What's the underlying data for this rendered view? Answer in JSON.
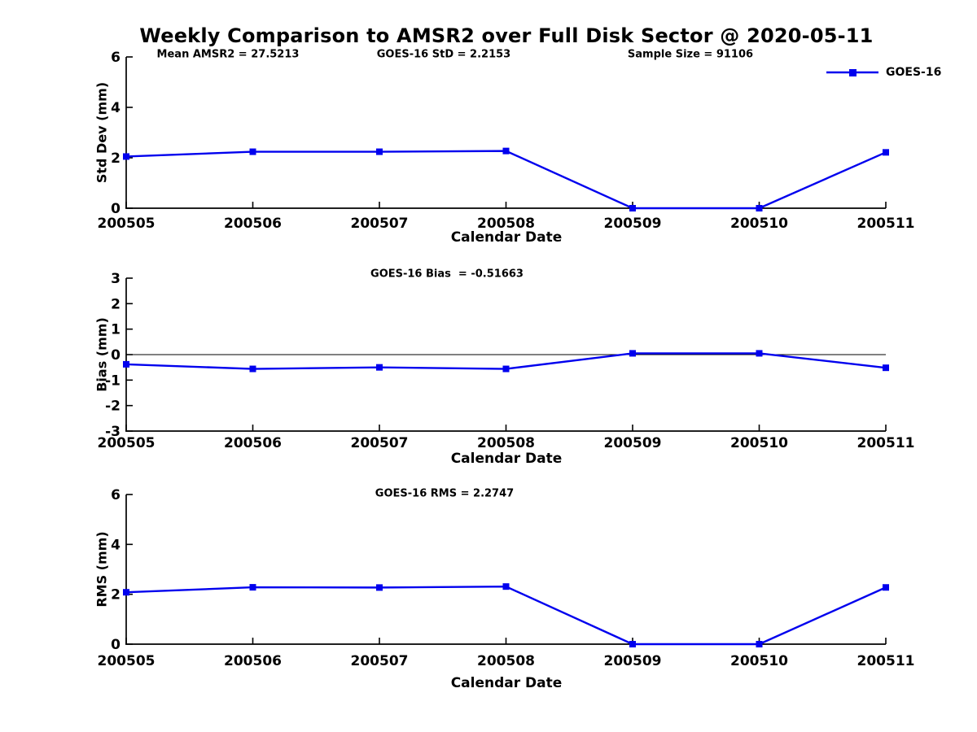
{
  "figure": {
    "title": "Weekly Comparison to AMSR2 over Full Disk Sector @ 2020-05-11",
    "background_color": "#ffffff",
    "line_color": "#0000ee",
    "axis_color": "#000000"
  },
  "legend": {
    "label": "GOES-16",
    "marker": "filled-square",
    "position": "top-right"
  },
  "chart_data": [
    {
      "type": "line",
      "ylabel": "Std Dev (mm)",
      "xlabel": "Calendar Date",
      "ylim": [
        0,
        6
      ],
      "yticks": [
        0,
        2,
        4,
        6
      ],
      "categories": [
        "200505",
        "200506",
        "200507",
        "200508",
        "200509",
        "200510",
        "200511"
      ],
      "series": [
        {
          "name": "GOES-16",
          "values": [
            2.05,
            2.24,
            2.24,
            2.27,
            0,
            0,
            2.2153
          ]
        }
      ],
      "annotations": [
        "Mean AMSR2 = 27.5213",
        "GOES-16 StD = 2.2153",
        "Sample Size = 91106"
      ],
      "grid": false,
      "zero_line": false,
      "legend_visible": true
    },
    {
      "type": "line",
      "ylabel": "Bias (mm)",
      "xlabel": "Calendar Date",
      "ylim": [
        -3,
        3
      ],
      "yticks": [
        -3,
        -2,
        -1,
        0,
        1,
        2,
        3
      ],
      "categories": [
        "200505",
        "200506",
        "200507",
        "200508",
        "200509",
        "200510",
        "200511"
      ],
      "series": [
        {
          "name": "GOES-16",
          "values": [
            -0.38,
            -0.56,
            -0.5,
            -0.56,
            0.05,
            0.05,
            -0.51663
          ]
        }
      ],
      "annotations": [
        "GOES-16 Bias  = -0.51663"
      ],
      "grid": false,
      "zero_line": true,
      "legend_visible": false
    },
    {
      "type": "line",
      "ylabel": "RMS (mm)",
      "xlabel": "Calendar Date",
      "ylim": [
        0,
        6
      ],
      "yticks": [
        0,
        2,
        4,
        6
      ],
      "categories": [
        "200505",
        "200506",
        "200507",
        "200508",
        "200509",
        "200510",
        "200511"
      ],
      "series": [
        {
          "name": "GOES-16",
          "values": [
            2.08,
            2.28,
            2.27,
            2.31,
            0,
            0,
            2.2747
          ]
        }
      ],
      "annotations": [
        "GOES-16 RMS = 2.2747"
      ],
      "grid": false,
      "zero_line": false,
      "legend_visible": false
    }
  ]
}
